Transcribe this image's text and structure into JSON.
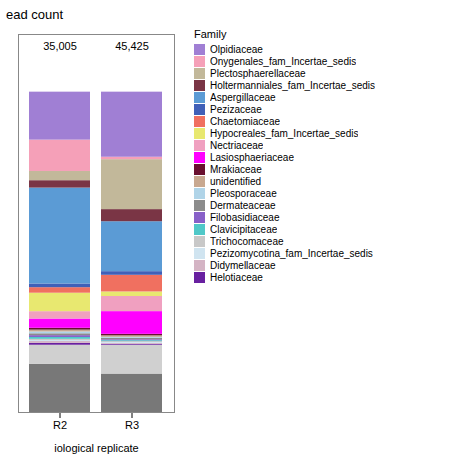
{
  "chart_data": {
    "type": "bar",
    "stacked": true,
    "title": "ead count",
    "xlabel": "iological replicate",
    "categories": [
      "R2",
      "R3"
    ],
    "series": [
      {
        "color": "#787878",
        "values": [
          0.15,
          0.12
        ]
      },
      {
        "color": "#d0d0d0",
        "values": [
          0.06,
          0.09
        ]
      },
      {
        "name": "Olpidiaceae",
        "color": "#a07fd4",
        "values": [
          0.149708,
          0.20317
        ]
      },
      {
        "name": "Onygenales_fam_Incertae_sedis",
        "color": "#f5a0b8",
        "values": [
          0.097886,
          0.00756
        ]
      },
      {
        "name": "Plectosphaerellaceae",
        "color": "#c2b89a",
        "values": [
          0.02879,
          0.155921
        ]
      },
      {
        "name": "Holtermanniales_fam_Incertae_sedis",
        "color": "#7a3545",
        "values": [
          0.023032,
          0.037799
        ]
      },
      {
        "name": "Aspergillaceae",
        "color": "#5b9bd5",
        "values": [
          0.299417,
          0.155921
        ]
      },
      {
        "name": "Pezizaceae",
        "color": "#4060b8",
        "values": [
          0.011516,
          0.01134
        ]
      },
      {
        "name": "Chaetomiaceae",
        "color": "#f07060",
        "values": [
          0.017274,
          0.051974
        ]
      },
      {
        "name": "Hypocreales_fam_Incertae_sedis",
        "color": "#e8e870",
        "values": [
          0.05758,
          0.014175
        ]
      },
      {
        "name": "Nectriaceae",
        "color": "#f0a0c0",
        "values": [
          0.023032,
          0.047249
        ]
      },
      {
        "name": "Lasiosphaeriaceae",
        "color": "#ff00ff",
        "values": [
          0.02879,
          0.070873
        ]
      },
      {
        "name": "Mrakiaceae",
        "color": "#6a1030",
        "values": [
          0.005758,
          0.004725
        ]
      },
      {
        "name": "unidentified",
        "color": "#c8a890",
        "values": [
          0.005758,
          0.004725
        ]
      },
      {
        "name": "Pleosporaceae",
        "color": "#b0d4e8",
        "values": [
          0.005758,
          0.002835
        ]
      },
      {
        "name": "Dermateaceae",
        "color": "#8c8c8c",
        "values": [
          0.005758,
          0.004725
        ]
      },
      {
        "name": "Filobasidiaceae",
        "color": "#8860c8",
        "values": [
          0.005758,
          0.002835
        ]
      },
      {
        "name": "Clavicipitaceae",
        "color": "#50c8c8",
        "values": [
          0.005758,
          0.002835
        ]
      },
      {
        "name": "Trichocomaceae",
        "color": "#c8c8c8",
        "values": [
          0.003455,
          0.002835
        ]
      },
      {
        "name": "Pezizomycotina_fam_Incertae_sedis",
        "color": "#d0e4f0",
        "values": [
          0.003455,
          0.002835
        ]
      },
      {
        "name": "Didymellaceae",
        "color": "#d4b4c4",
        "values": [
          0.005758,
          0.002835
        ]
      },
      {
        "name": "Helotiaceae",
        "color": "#6820a0",
        "values": [
          0.005758,
          0.002835
        ]
      }
    ],
    "ylim": [
      0,
      1.18
    ],
    "yticks": [],
    "tick_labels": "x",
    "legend": "right",
    "legend_title": "Family",
    "annotations": [
      {
        "text": "35,005",
        "x": "R2"
      },
      {
        "text": "45,425",
        "x": "R3"
      }
    ]
  }
}
